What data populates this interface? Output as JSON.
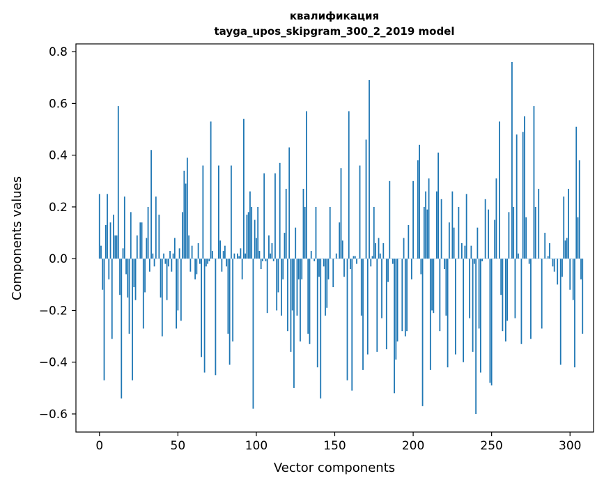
{
  "chart_data": {
    "type": "bar",
    "title_lines": [
      "квалификация",
      "tayga_upos_skipgram_300_2_2019 model"
    ],
    "xlabel": "Vector components",
    "ylabel": "Components values",
    "xlim": [
      -15,
      315
    ],
    "ylim": [
      -0.67,
      0.83
    ],
    "xticks": [
      0,
      50,
      100,
      150,
      200,
      250,
      300
    ],
    "yticks": [
      -0.6,
      -0.4,
      -0.2,
      0.0,
      0.2,
      0.4,
      0.6,
      0.8
    ],
    "xtick_labels": [
      "0",
      "50",
      "100",
      "150",
      "200",
      "250",
      "300"
    ],
    "ytick_labels": [
      "−0.6",
      "−0.4",
      "−0.2",
      "0.0",
      "0.2",
      "0.4",
      "0.6",
      "0.8"
    ],
    "bar_color": "#1f77b4",
    "grid": false,
    "values": [
      0.25,
      0.05,
      -0.12,
      -0.47,
      0.13,
      0.25,
      -0.08,
      0.14,
      -0.31,
      0.17,
      0.09,
      0.09,
      0.59,
      -0.14,
      -0.54,
      0.04,
      0.24,
      -0.06,
      -0.15,
      -0.29,
      0.18,
      -0.47,
      -0.11,
      -0.16,
      0.09,
      0.0,
      0.14,
      0.14,
      -0.27,
      -0.13,
      0.08,
      0.2,
      -0.05,
      0.42,
      0.02,
      -0.03,
      0.24,
      0.0,
      0.17,
      -0.15,
      -0.3,
      0.02,
      -0.02,
      -0.16,
      -0.03,
      0.03,
      -0.05,
      0.02,
      0.08,
      -0.27,
      -0.2,
      0.04,
      -0.24,
      0.18,
      0.34,
      0.29,
      0.39,
      0.09,
      -0.05,
      0.05,
      0.0,
      -0.08,
      -0.06,
      0.06,
      -0.02,
      -0.38,
      0.36,
      -0.44,
      -0.03,
      -0.02,
      -0.01,
      0.53,
      0.03,
      0.0,
      -0.45,
      0.0,
      0.36,
      0.07,
      -0.05,
      0.03,
      0.05,
      -0.03,
      -0.29,
      -0.41,
      0.36,
      -0.32,
      0.02,
      0.0,
      0.02,
      0.01,
      0.04,
      -0.08,
      0.54,
      0.02,
      0.17,
      0.18,
      0.26,
      0.2,
      -0.58,
      0.15,
      0.08,
      0.2,
      0.03,
      -0.04,
      -0.01,
      0.33,
      -0.01,
      -0.21,
      0.09,
      0.02,
      0.06,
      -0.01,
      0.33,
      -0.2,
      -0.13,
      0.37,
      -0.22,
      -0.08,
      0.1,
      0.27,
      -0.28,
      0.43,
      -0.36,
      -0.2,
      -0.5,
      0.12,
      -0.22,
      -0.08,
      -0.32,
      -0.08,
      0.27,
      0.2,
      0.57,
      -0.29,
      -0.33,
      0.03,
      0.0,
      -0.01,
      0.2,
      -0.42,
      -0.07,
      -0.54,
      0.0,
      -0.03,
      -0.22,
      -0.19,
      -0.08,
      0.2,
      0.0,
      -0.11,
      0.0,
      0.02,
      0.0,
      0.14,
      0.35,
      0.07,
      -0.07,
      0.0,
      -0.47,
      0.57,
      -0.04,
      -0.51,
      0.01,
      0.01,
      -0.02,
      0.0,
      0.36,
      -0.22,
      -0.43,
      0.0,
      0.46,
      -0.37,
      0.69,
      -0.03,
      0.01,
      0.2,
      0.06,
      -0.36,
      0.08,
      0.02,
      -0.23,
      0.06,
      0.0,
      -0.35,
      -0.09,
      0.3,
      0.0,
      -0.02,
      -0.52,
      -0.39,
      -0.32,
      0.0,
      0.0,
      -0.28,
      0.08,
      -0.3,
      -0.28,
      0.13,
      0.0,
      -0.08,
      0.3,
      0.0,
      0.0,
      0.38,
      0.44,
      -0.06,
      -0.57,
      0.2,
      0.26,
      0.19,
      0.31,
      -0.43,
      -0.2,
      -0.21,
      0.0,
      0.26,
      0.41,
      -0.28,
      0.23,
      0.0,
      -0.04,
      -0.22,
      -0.42,
      0.14,
      0.0,
      0.26,
      0.12,
      -0.37,
      0.0,
      0.2,
      0.0,
      0.06,
      -0.4,
      0.05,
      0.25,
      0.0,
      -0.23,
      0.05,
      -0.36,
      -0.02,
      -0.6,
      0.12,
      -0.27,
      -0.44,
      -0.01,
      0.0,
      0.23,
      0.0,
      0.19,
      -0.48,
      -0.49,
      0.0,
      0.15,
      0.31,
      0.0,
      0.53,
      -0.14,
      -0.28,
      0.0,
      -0.32,
      -0.24,
      0.18,
      0.0,
      0.76,
      0.2,
      -0.23,
      0.48,
      0.02,
      0.0,
      -0.33,
      0.49,
      0.55,
      0.16,
      0.0,
      -0.02,
      -0.31,
      0.0,
      0.59,
      0.2,
      0.0,
      0.27,
      0.0,
      -0.27,
      0.0,
      0.1,
      0.0,
      0.01,
      0.06,
      0.0,
      -0.03,
      -0.05,
      0.0,
      -0.1,
      0.0,
      -0.41,
      -0.07,
      0.24,
      0.07,
      0.08,
      0.27,
      -0.12,
      0.0,
      -0.16,
      -0.42,
      0.51,
      0.16,
      0.38,
      -0.08,
      -0.29
    ]
  }
}
